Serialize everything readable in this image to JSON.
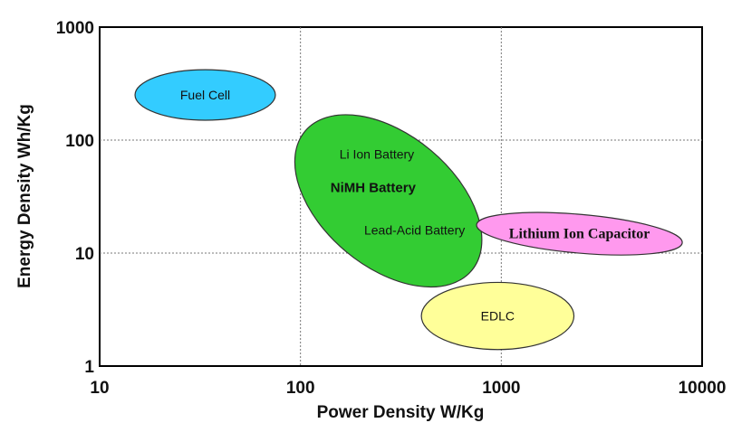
{
  "chart_data": {
    "type": "scatter",
    "title": "",
    "xlabel": "Power Density  W/Kg",
    "ylabel": "Energy Density  Wh/Kg",
    "xscale": "log",
    "yscale": "log",
    "xlim": [
      10,
      10000
    ],
    "ylim": [
      1,
      1000
    ],
    "xticks": [
      "10",
      "100",
      "1000",
      "10000"
    ],
    "yticks": [
      "1",
      "10",
      "100",
      "1000"
    ],
    "grid": true,
    "regions": [
      {
        "name": "Fuel Cell",
        "x_range": [
          15,
          75
        ],
        "y_range": [
          150,
          420
        ],
        "fill": "#33ccff",
        "label_color": "#111111"
      },
      {
        "name": "Li Ion / NiMH / Lead-Acid",
        "labels": [
          "Li Ion Battery",
          "NiMH Battery",
          "Lead-Acid Battery"
        ],
        "x_range": [
          75,
          1000
        ],
        "y_range": [
          7,
          120
        ],
        "fill": "#33cc33",
        "label_color": "#111111"
      },
      {
        "name": "Lithium Ion Capacitor",
        "x_range": [
          750,
          8000
        ],
        "y_range": [
          10,
          22
        ],
        "fill": "#ff99ee",
        "label_color": "#ff0000"
      },
      {
        "name": "EDLC",
        "x_range": [
          400,
          2300
        ],
        "y_range": [
          1.4,
          5.5
        ],
        "fill": "#ffff99",
        "label_color": "#111111"
      }
    ]
  }
}
